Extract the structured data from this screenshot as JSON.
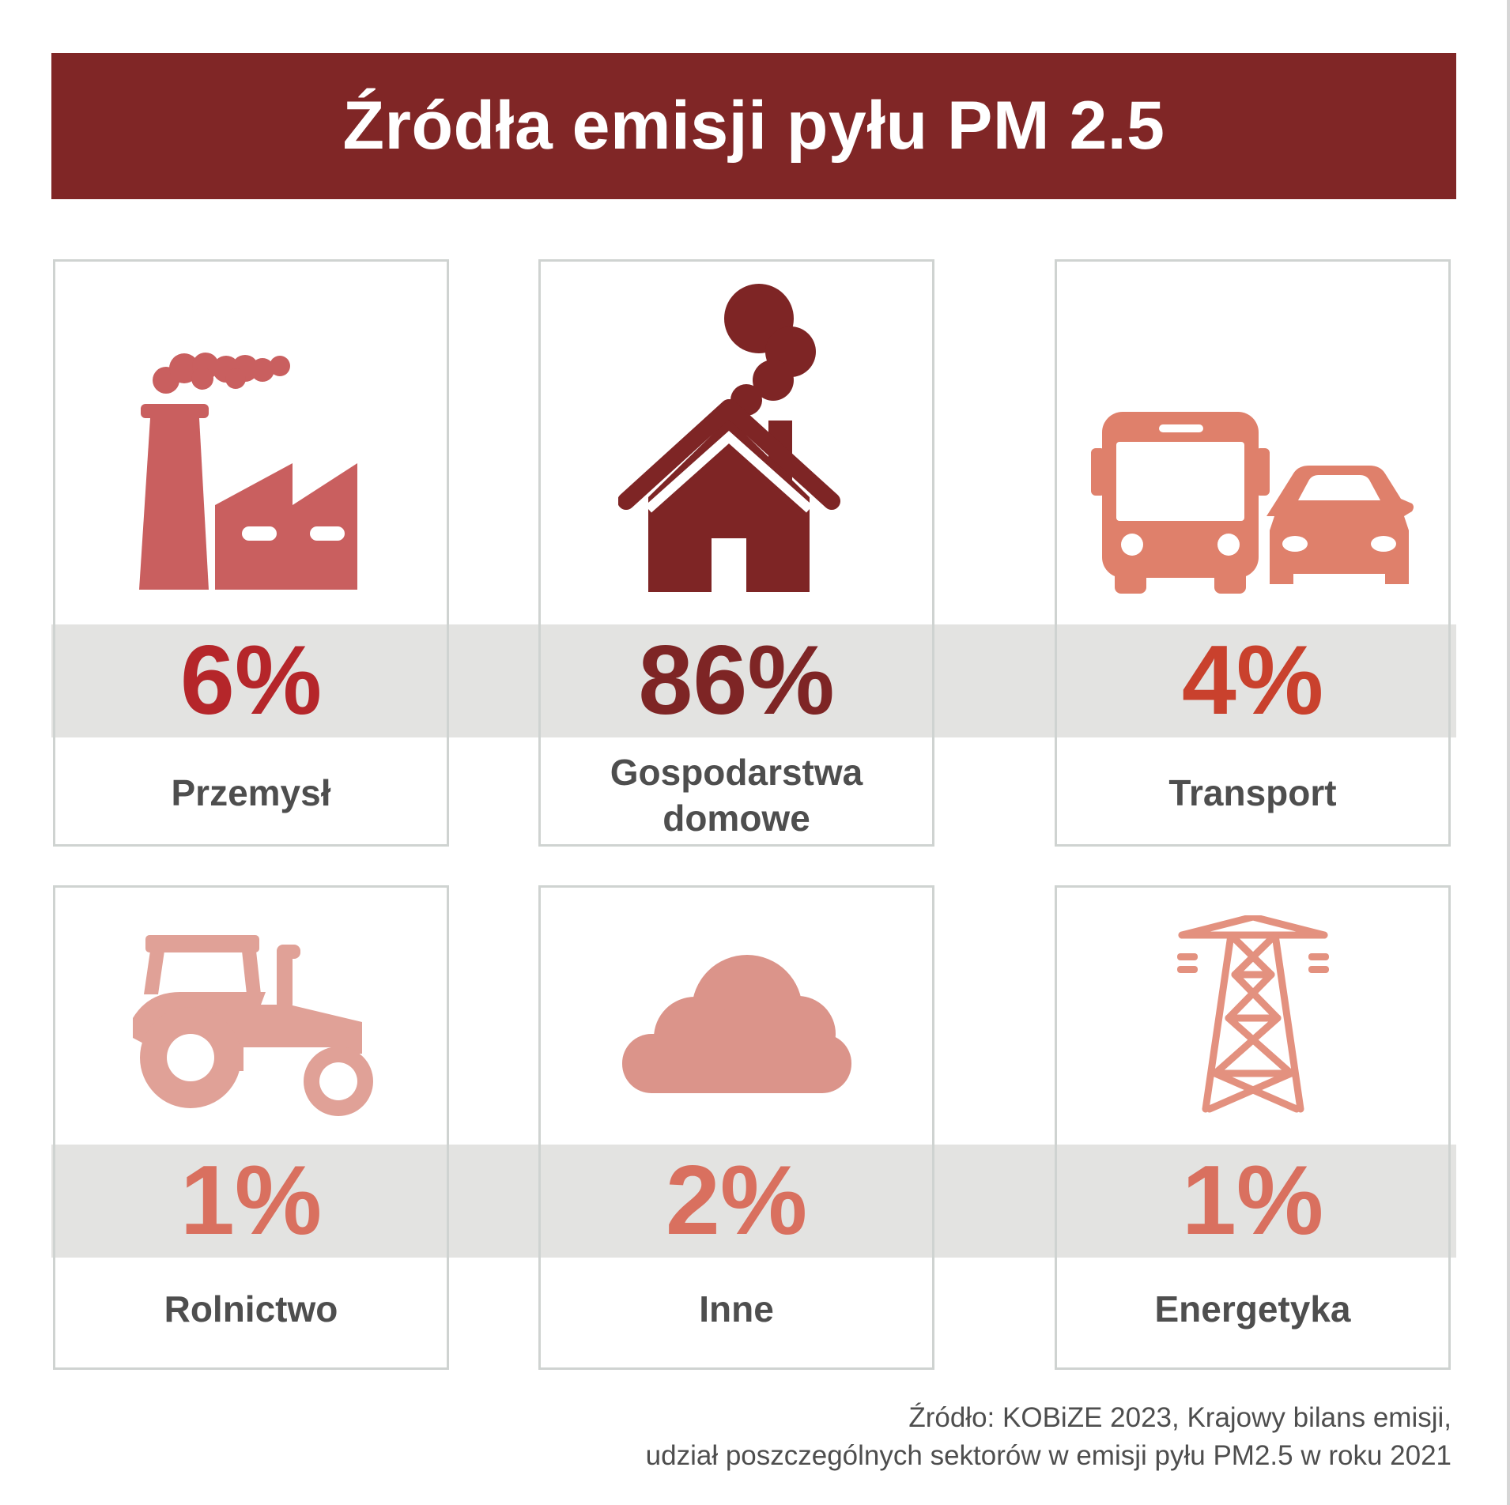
{
  "title": "Źródła emisji pyłu PM 2.5",
  "chart_data": {
    "type": "table",
    "title": "Źródła emisji pyłu PM 2.5",
    "unit": "%",
    "categories": [
      "Przemysł",
      "Gospodarstwa domowe",
      "Transport",
      "Rolnictwo",
      "Inne",
      "Energetyka"
    ],
    "values": [
      6,
      86,
      4,
      1,
      2,
      1
    ],
    "cards": [
      {
        "pct": "6%",
        "label_lines": [
          "Przemysł"
        ],
        "icon": "factory-icon",
        "color": "#b5262a",
        "icon_color": "#c95f5f"
      },
      {
        "pct": "86%",
        "label_lines": [
          "Gospodarstwa",
          "domowe"
        ],
        "icon": "house-icon",
        "color": "#7e2525",
        "icon_color": "#7e2525"
      },
      {
        "pct": "4%",
        "label_lines": [
          "Transport"
        ],
        "icon": "bus-car-icon",
        "color": "#c9412d",
        "icon_color": "#df806b"
      },
      {
        "pct": "1%",
        "label_lines": [
          "Rolnictwo"
        ],
        "icon": "tractor-icon",
        "color": "#d9705f",
        "icon_color": "#e0a197"
      },
      {
        "pct": "2%",
        "label_lines": [
          "Inne"
        ],
        "icon": "cloud-icon",
        "color": "#d9705f",
        "icon_color": "#db948a"
      },
      {
        "pct": "1%",
        "label_lines": [
          "Energetyka"
        ],
        "icon": "pylon-icon",
        "color": "#d9705f",
        "icon_color": "#e3917f"
      }
    ]
  },
  "source": {
    "line1": "Źródło: KOBiZE 2023, Krajowy bilans emisji,",
    "line2": "udział poszczególnych sektorów w emisji pyłu PM2.5 w roku 2021"
  },
  "colors": {
    "title_bar": "#802626",
    "band": "#e3e3e1",
    "card_border": "#cfd3d1",
    "label_text": "#4e4e4e"
  }
}
